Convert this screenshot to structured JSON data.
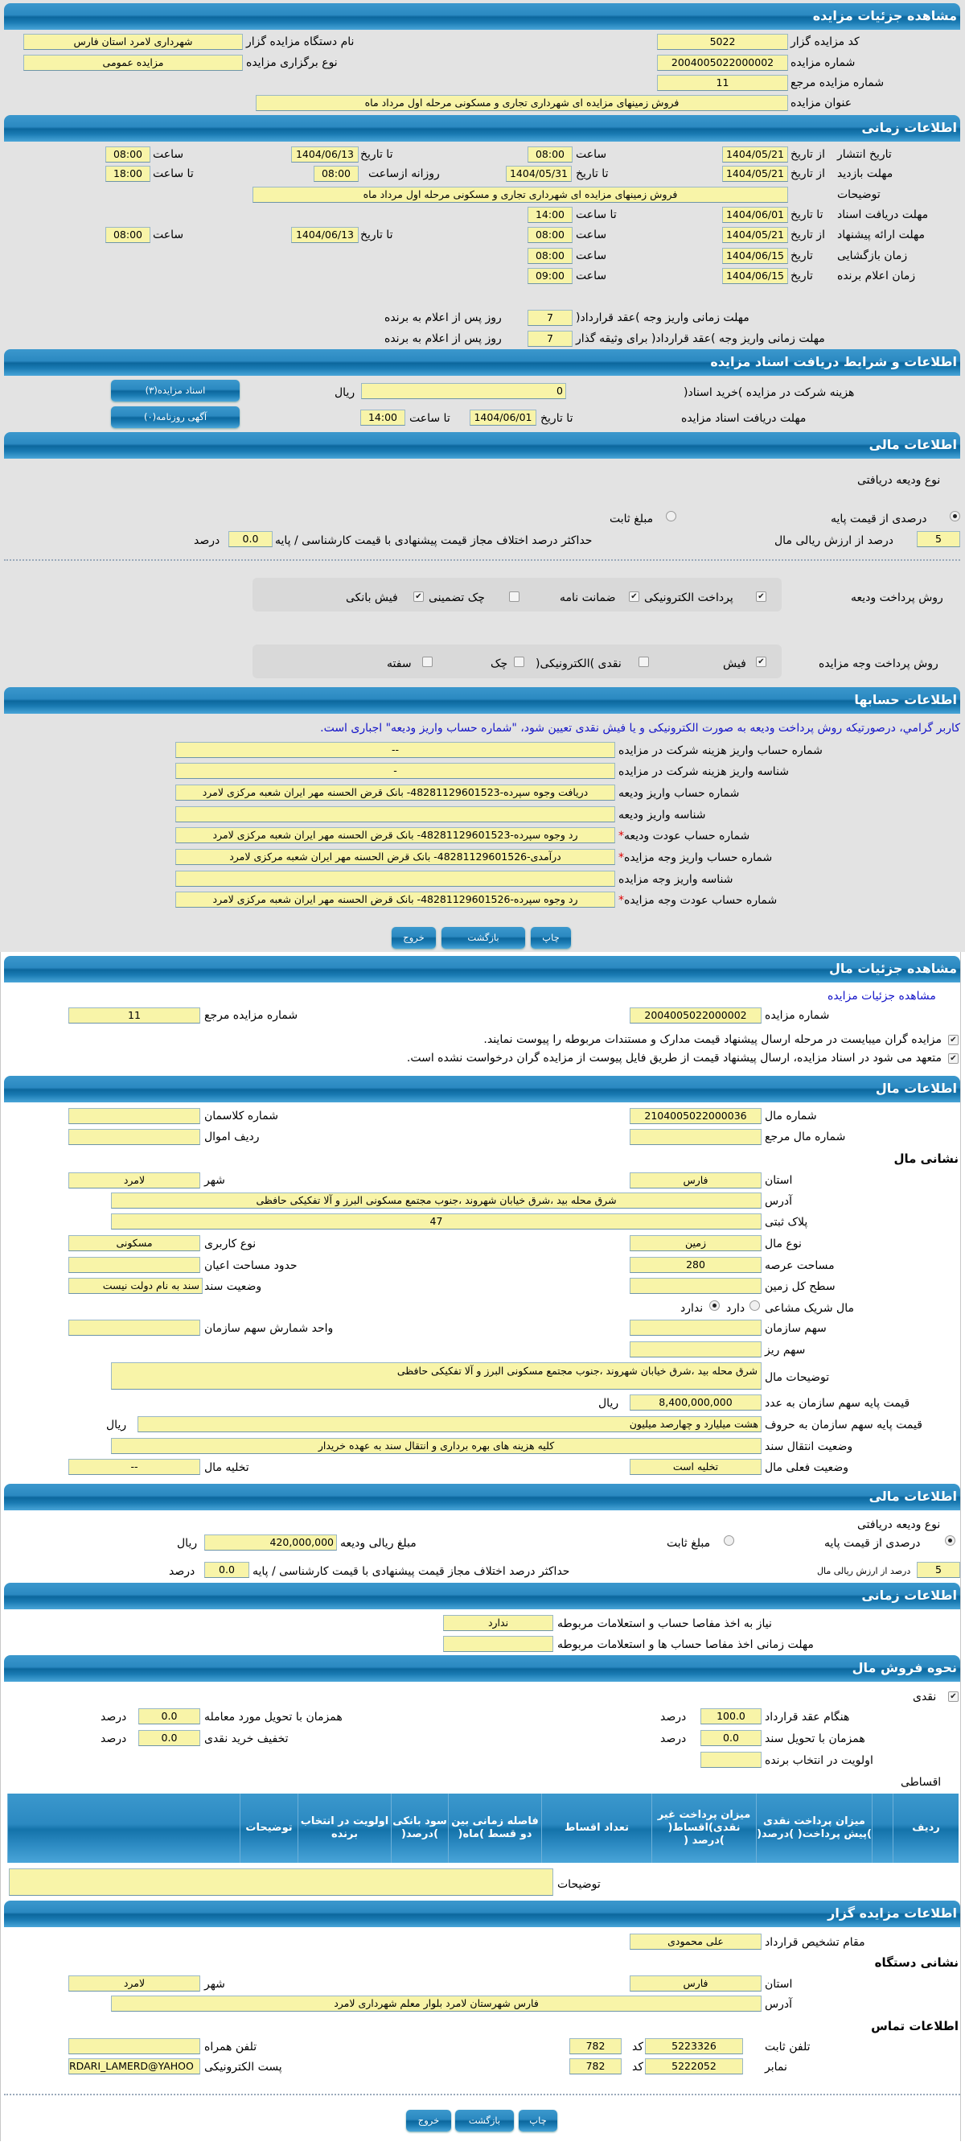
{
  "auction": {
    "title": "مشاهده جزئیات مزایده",
    "code_label": "کد مزایده گزار",
    "code": "5022",
    "org_label": "نام دستگاه مزایده گزار",
    "org": "شهرداری لامرد استان فارس",
    "number_label": "شماره مزایده",
    "number": "2004005022000002",
    "type_label": "نوع برگزاری مزایده",
    "type": "مزایده عمومی",
    "ref_label": "شماره مزایده مرجع",
    "ref": "11",
    "subject_label": "عنوان مزایده",
    "subject": "فروش زمینهای مزایده ای شهرداری تجاری و مسکونی مرحله اول مرداد ماه"
  },
  "timing": {
    "title": "اطلاعات زمانی",
    "from_date": "از تاریخ",
    "to_date": "تا تاریخ",
    "date": "تاریخ",
    "time": "ساعت",
    "to_time": "تا ساعت",
    "daily_from": "روزانه ازساعت",
    "publish_label": "تاریخ انتشار",
    "publish_from": "1404/05/21",
    "publish_from_time": "08:00",
    "publish_to": "1404/06/13",
    "publish_to_time": "08:00",
    "visit_label": "مهلت بازدید",
    "visit_from": "1404/05/21",
    "visit_to": "1404/05/31",
    "visit_daily_from": "08:00",
    "visit_daily_to": "18:00",
    "desc_label": "توضیحات",
    "desc": "فروش زمینهای مزایده ای شهرداری تجاری و مسکونی مرحله اول مرداد ماه",
    "doc_label": "مهلت دریافت اسناد",
    "doc_to": "1404/06/01",
    "doc_to_time": "14:00",
    "offer_label": "مهلت ارائه پیشنهاد",
    "offer_from": "1404/05/21",
    "offer_from_time": "08:00",
    "offer_to": "1404/06/13",
    "offer_to_time": "08:00",
    "opening_label": "زمان بازگشایی",
    "opening_date": "1404/06/15",
    "opening_time": "08:00",
    "winner_label": "زمان اعلام برنده",
    "winner_date": "1404/06/15",
    "winner_time": "09:00",
    "pay1_label": "مهلت زمانی واریز وجه )عقد قرارداد(",
    "pay1": "7",
    "pay2_label": "مهلت زمانی واریز وجه )عقد قرارداد( برای وثیقه گذار",
    "pay2": "7",
    "days_after": "روز پس از اعلام به برنده"
  },
  "docs": {
    "title": "اطلاعات و شرایط دریافت اسناد مزایده",
    "fee_label": "هزینه شرکت در مزایده )خرید اسناد(",
    "fee": "0",
    "rial": "ریال",
    "deadline_label": "مهلت دریافت اسناد مزایده",
    "to_date": "تا تاریخ",
    "deadline_date": "1404/06/01",
    "to_time": "تا ساعت",
    "deadline_time": "14:00",
    "docs_button": "اسناد مزایده(۳)",
    "news_button": "آگهی روزنامه(۰)"
  },
  "finance": {
    "title": "اطلاعات مالی",
    "deposit_type_label": "نوع ودیعه دریافتی",
    "percent_option": "درصدی از قیمت پایه",
    "percent_selected": true,
    "fixed_option": "مبلغ ثابت",
    "fixed_selected": false,
    "percent_value": "5",
    "percent_value_label": "درصد از ارزش ریالی مال",
    "max_diff_label": "حداکثر درصد اختلاف مجاز قیمت پیشنهادی با قیمت کارشناسی / پایه",
    "max_diff": "0.0",
    "percent_unit": "درصد",
    "deposit_methods_label": "روش پرداخت ودیعه",
    "deposit_methods": [
      {
        "label": "پرداخت الکترونیکی",
        "checked": true
      },
      {
        "label": "ضمانت نامه",
        "checked": true
      },
      {
        "label": "چک تضمینی",
        "checked": false
      },
      {
        "label": "فیش بانکی",
        "checked": true
      }
    ],
    "payment_methods_label": "روش پرداخت وجه مزایده",
    "payment_methods": [
      {
        "label": "فیش",
        "checked": true
      },
      {
        "label": "نقدی )الکترونیکی(",
        "checked": false
      },
      {
        "label": "چک",
        "checked": false
      },
      {
        "label": "سفته",
        "checked": false
      }
    ]
  },
  "accounts": {
    "title": "اطلاعات حسابها",
    "notice": "کاربر گرامي، درصورتیکه روش پرداخت ودیعه به صورت الکترونیکی و یا فیش نقدی تعیین شود، \"شماره حساب واریز ودیعه\" اجباری است.",
    "rows": [
      {
        "label": "شماره حساب واریز هزینه شرکت در مزایده",
        "value": "--",
        "required": false
      },
      {
        "label": "شناسه واریز هزینه شرکت در مزایده",
        "value": "-",
        "required": false
      },
      {
        "label": "شماره حساب واریز ودیعه",
        "value": "دریافت وجوه سپرده-48281129601523- بانک قرض الحسنه مهر ایران شعبه مرکزی لامرد",
        "required": false
      },
      {
        "label": "شناسه واریز ودیعه",
        "value": "",
        "required": false
      },
      {
        "label": "شماره حساب عودت ودیعه",
        "value": "رد وجوه سپرده-48281129601523- بانک قرض الحسنه مهر ایران شعبه مرکزی لامرد",
        "required": true
      },
      {
        "label": "شماره حساب واریز وجه مزایده",
        "value": "درآمدی-48281129601526- بانک قرض الحسنه مهر ایران شعبه مرکزی لامرد",
        "required": true
      },
      {
        "label": "شناسه واریز وجه مزایده",
        "value": "",
        "required": false
      },
      {
        "label": "شماره حساب عودت وجه مزایده",
        "value": "رد وجوه سپرده-48281129601526- بانک قرض الحسنه مهر ایران شعبه مرکزی لامرد",
        "required": true
      }
    ],
    "required_mark": "*"
  },
  "buttons": {
    "print": "چاپ",
    "back": "بازگشت",
    "exit": "خروج"
  },
  "property": {
    "title": "مشاهده جزئیات مال",
    "details_link": "مشاهده جزئیات مزایده",
    "auction_number_label": "شماره مزایده",
    "auction_number": "2004005022000002",
    "auction_ref_label": "شماره مزایده مرجع",
    "auction_ref": "11",
    "notice1": "مزایده گران میبایست در مرحله ارسال پیشنهاد قیمت مدارک و مستندات مربوطه را پیوست نمایند.",
    "notice1_checked": true,
    "notice2": "متعهد می شود در اسناد مزایده، ارسال پیشنهاد قیمت از طریق فایل پیوست از مزایده گران درخواست نشده است.",
    "notice2_checked": true
  },
  "property_info": {
    "title": "اطلاعات مال",
    "number_label": "شماره مال",
    "number": "2104005022000036",
    "class_label": "شماره کلاسمان",
    "class": "",
    "ref_label": "شماره مال مرجع",
    "ref": "",
    "row_label": "ردیف اموال",
    "row": "",
    "address_heading": "نشانی مال",
    "province_label": "استان",
    "province": "فارس",
    "city_label": "شهر",
    "city": "لامرد",
    "address_label": "آدرس",
    "address": "شرق محله بید ،شرق خیابان شهروند ،جنوب مجتمع مسکونی البرز و آلا تفکیکی حافظی",
    "plaque_label": "پلاک ثبتی",
    "plaque": "47",
    "kind_label": "نوع مال",
    "kind": "زمین",
    "usage_label": "نوع کاربری",
    "usage": "مسکونی",
    "area_label": "مساحت عرصه",
    "area": "280",
    "building_label": "حدود مساحت اعیان",
    "building": "",
    "land_label": "سطح کل زمین",
    "land": "",
    "deed_label": "وضعیت سند",
    "deed": "سند به نام دولت نیست",
    "shared_label": "مال شریک مشاعی",
    "shared_yes": "دارد",
    "shared_no": "ندارد",
    "shared": false,
    "org_share_label": "سهم سازمان",
    "org_share": "",
    "share_unit_label": "واحد شمارش سهم سازمان",
    "share_unit": "",
    "sub_share_label": "سهم ریز",
    "sub_share": "",
    "desc_label": "توضیحات مال",
    "desc": "شرق محله بید ،شرق خیابان شهروند ،جنوب مجتمع مسکونی البرز و آلا تفکیکی حافظی",
    "price_num_label": "قیمت پایه سهم سازمان به عدد",
    "price_num": "8,400,000,000",
    "price_words_label": "قیمت پایه سهم سازمان به حروف",
    "price_words": "هشت میلیارد و چهارصد میلیون",
    "rial": "ریال",
    "transfer_label": "وضعیت انتقال سند",
    "transfer": "کلیه هزینه های بهره برداری و انتقال سند به عهده خریدار",
    "current_label": "وضعیت فعلی مال",
    "current": "تخلیه است",
    "evac_label": "تخلیه مال",
    "evac": "--"
  },
  "property_finance": {
    "title": "اطلاعات مالی",
    "deposit_type_label": "نوع ودیعه دریافتی",
    "percent_option": "درصدی از قیمت پایه",
    "percent_selected": true,
    "fixed_option": "مبلغ ثابت",
    "fixed_selected": false,
    "amount_label": "مبلغ ریالی ودیعه",
    "amount": "420,000,000",
    "rial": "ریال",
    "percent_value": "5",
    "percent_value_label": "درصد از ارزش ریالی مال",
    "max_diff_label": "حداکثر درصد اختلاف مجاز قیمت پیشنهادی با قیمت کارشناسی / پایه",
    "max_diff": "0.0",
    "percent_unit": "درصد"
  },
  "property_timing": {
    "title": "اطلاعات زمانی",
    "clearance_label": "نیاز به اخذ مفاصا حساب و استعلامات مربوطه",
    "clearance": "ندارد",
    "clearance_deadline_label": "مهلت زمانی اخذ مفاصا حساب ها و استعلامات مربوطه",
    "clearance_deadline": ""
  },
  "sale": {
    "title": "نحوه فروش مال",
    "cash_label": "نقدی",
    "cash_checked": true,
    "contract_label": "هنگام عقد قرارداد",
    "contract": "100.0",
    "deed_delivery_label": "همزمان با تحویل سند",
    "deed_delivery": "0.0",
    "priority_label": "اولویت در انتخاب برنده",
    "priority": "",
    "item_delivery_label": "همزمان با تحویل مورد معامله",
    "item_delivery": "0.0",
    "discount_label": "تخفیف خرید نقدی",
    "discount": "0.0",
    "percent_unit": "درصد",
    "installments_label": "اقساطی",
    "columns": [
      "ردیف",
      "",
      "میزان پرداخت نقدی )پیش پرداخت( )درصد(",
      "میزان پرداخت غیر نقدی)اقساط( )درصد (",
      "تعداد اقساط",
      "فاصله زمانی بین دو قسط )ماه(",
      "سود بانکی )درصد(",
      "اولویت در انتخاب برنده",
      "توضیحات",
      ""
    ],
    "desc_label": "توضیحات",
    "desc": ""
  },
  "auctioneer": {
    "title": "اطلاعات مزایده گزار",
    "authority_label": "مقام تشخیص قرارداد",
    "authority": "علی محمودی",
    "address_heading": "نشانی دستگاه",
    "province_label": "استان",
    "province": "فارس",
    "city_label": "شهر",
    "city": "لامرد",
    "address_label": "آدرس",
    "address": "فارس شهرستان لامرد بلوار معلم شهرداری لامرد",
    "contact_heading": "اطلاعات تماس",
    "phone_label": "تلفن ثابت",
    "phone": "5223326",
    "code_label": "کد",
    "phone_code": "782",
    "fax_label": "نمابر",
    "fax": "5222052",
    "fax_code": "782",
    "mobile_label": "تلفن همراه",
    "mobile": "",
    "email_label": "پست الکترونیکی",
    "email": "RDARI_LAMERD@YAHOO"
  },
  "colors": {
    "header": "#1a7bb3",
    "field": "#f8f4a8",
    "top_background": "#e3e3e3",
    "notice": "#1515c8",
    "required": "#e00000"
  }
}
